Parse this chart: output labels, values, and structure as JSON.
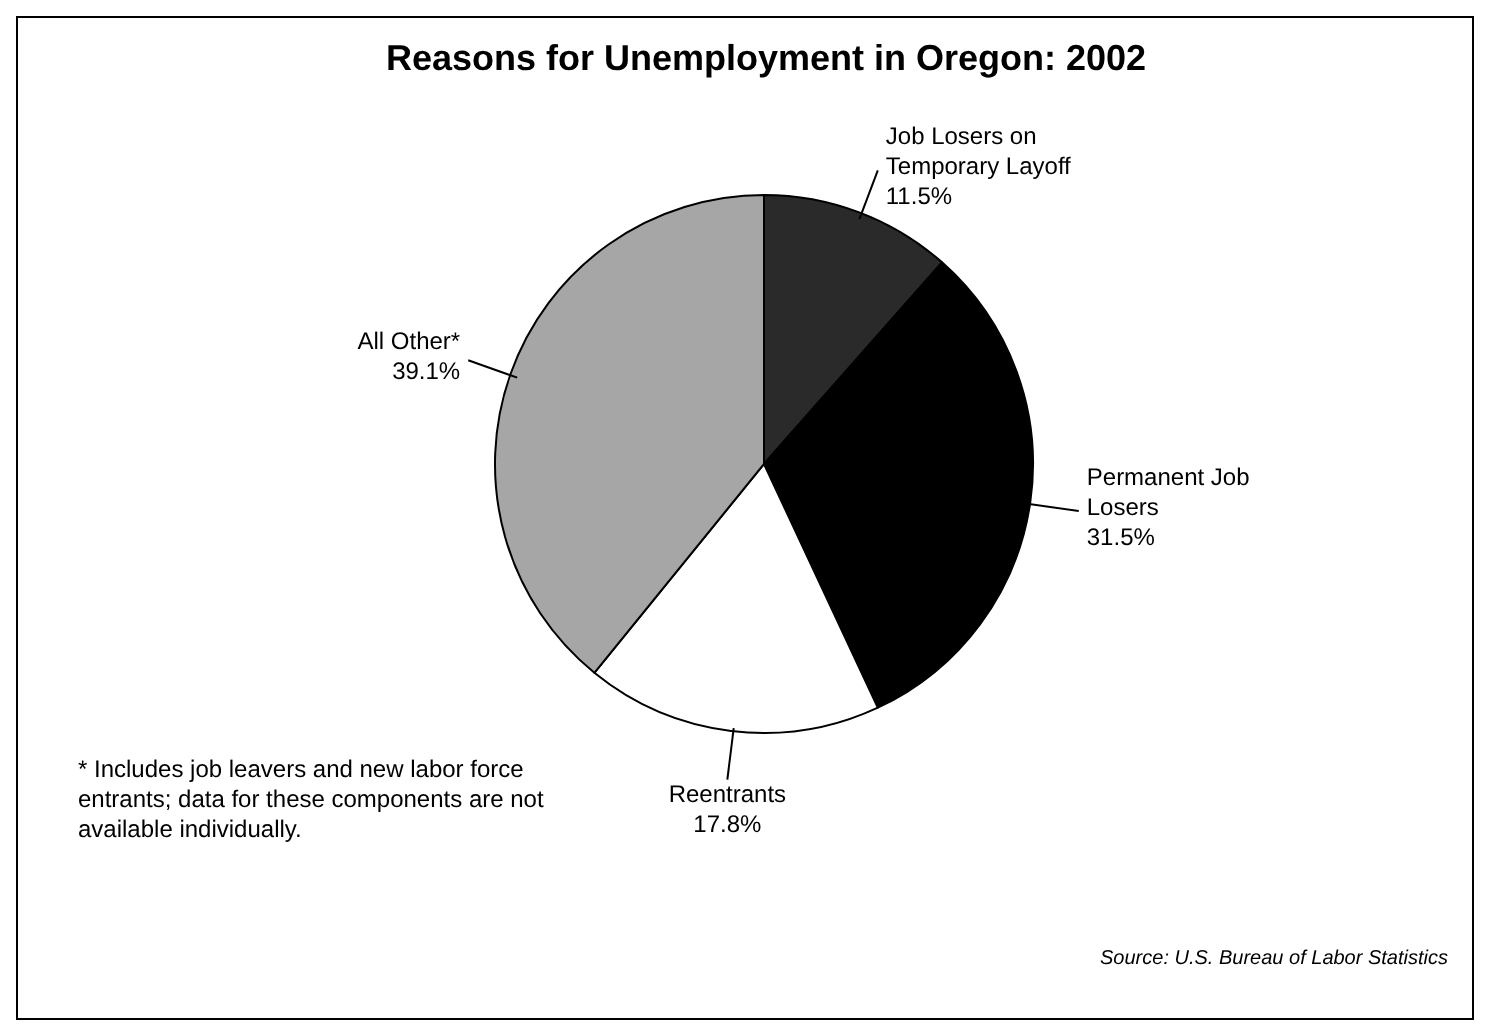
{
  "chart_data": {
    "type": "pie",
    "title": "Reasons for Unemployment in Oregon: 2002",
    "categories": [
      "Job Losers on Temporary Layoff",
      "Permanent Job Losers",
      "Reentrants",
      "All Other*"
    ],
    "values": [
      11.5,
      31.5,
      17.8,
      39.1
    ],
    "colors": [
      "#2a2a2a",
      "#000000",
      "#ffffff",
      "#a6a6a6"
    ],
    "value_labels": [
      "11.5%",
      "31.5%",
      "17.8%",
      "39.1%"
    ],
    "annotations": [
      "* Includes job leavers and new labor force entrants; data for these components are not available individually.",
      "Source: U.S. Bureau of Labor Statistics"
    ]
  }
}
